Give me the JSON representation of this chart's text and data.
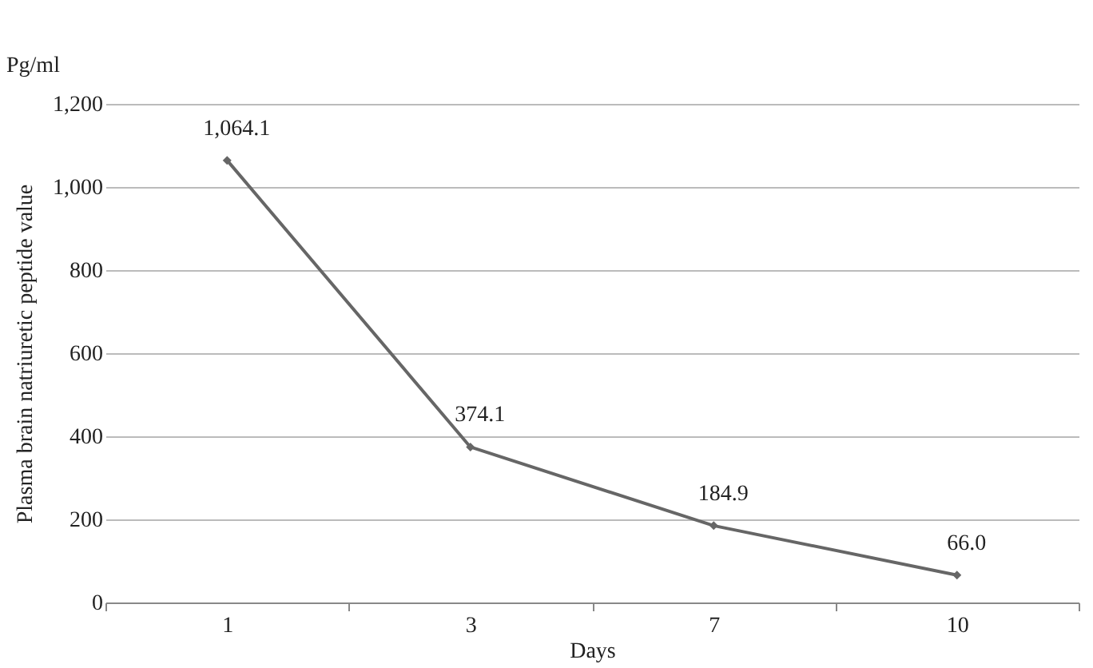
{
  "chart_data": {
    "type": "line",
    "xlabel": "Days",
    "ylabel": "Plasma brain natriuretic peptide value",
    "annotations": [
      "Pg/ml"
    ],
    "categories": [
      "1",
      "3",
      "7",
      "10"
    ],
    "series": [
      {
        "color": "#666666",
        "values": [
          1064.1,
          374.1,
          184.9,
          66.0
        ],
        "value_labels": [
          "1,064.1",
          "374.1",
          "184.9",
          "66.0"
        ]
      }
    ],
    "ylim": [
      0,
      1200
    ],
    "yticks": [
      0,
      200,
      400,
      600,
      800,
      {
        "value": 1000,
        "label": "1,000"
      },
      {
        "value": 1200,
        "label": "1,200"
      }
    ],
    "grid": "y",
    "marker": "diamond",
    "line_style": "solid"
  }
}
